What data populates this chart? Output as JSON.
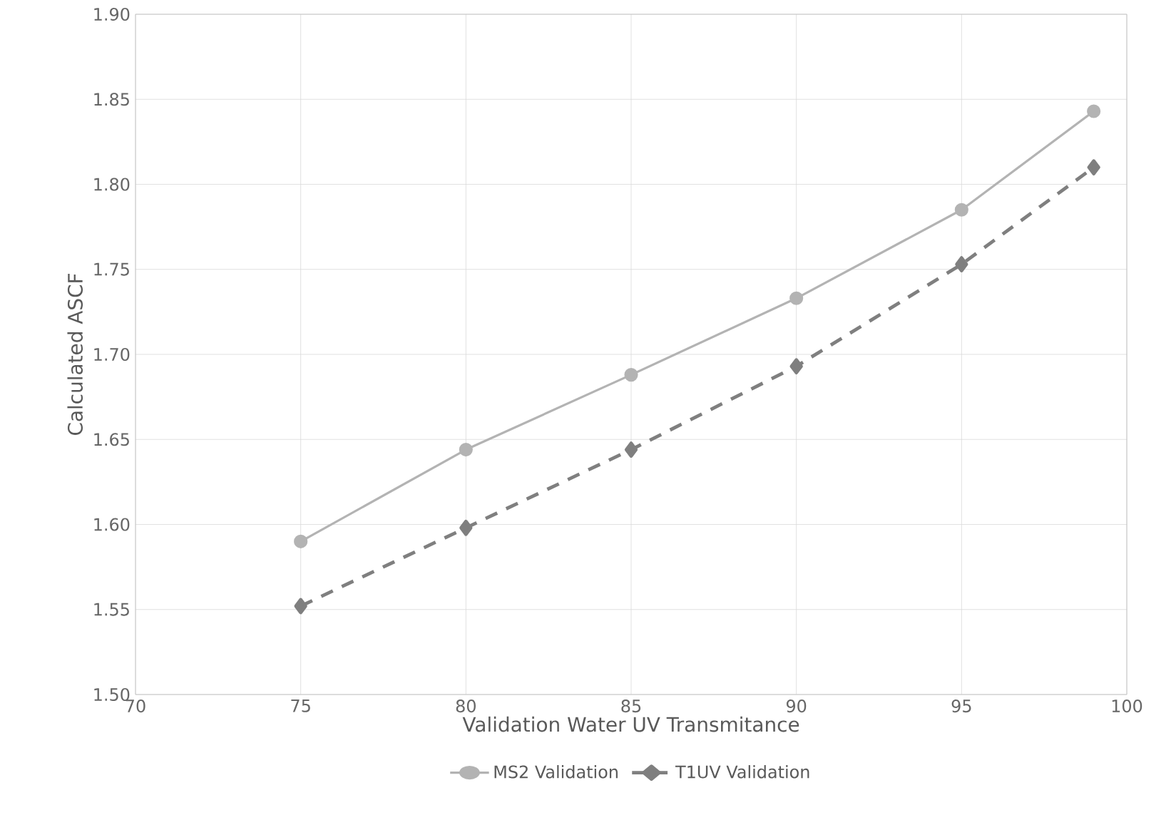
{
  "chart_data": {
    "type": "line",
    "xlabel": "Validation Water UV Transmitance",
    "ylabel": "Calculated ASCF",
    "x": [
      75,
      80,
      85,
      90,
      95,
      99
    ],
    "series": [
      {
        "name": "MS2 Validation",
        "color": "#b3b3b3",
        "values": [
          1.59,
          1.644,
          1.688,
          1.733,
          1.785,
          1.843
        ],
        "marker": "circle",
        "line_style": "solid"
      },
      {
        "name": "T1UV Validation",
        "color": "#7f7f7f",
        "values": [
          1.552,
          1.598,
          1.644,
          1.693,
          1.753,
          1.81
        ],
        "marker": "diamond",
        "line_style": "dashed"
      }
    ],
    "xlim": [
      70,
      100
    ],
    "xticks": [
      70,
      75,
      80,
      85,
      90,
      95,
      100
    ],
    "ylim": [
      1.5,
      1.9
    ],
    "yticks": [
      {
        "value": 1.5,
        "label": "1.50"
      },
      {
        "value": 1.55,
        "label": "1.55"
      },
      {
        "value": 1.6,
        "label": "1.60"
      },
      {
        "value": 1.65,
        "label": "1.65"
      },
      {
        "value": 1.7,
        "label": "1.70"
      },
      {
        "value": 1.75,
        "label": "1.75"
      },
      {
        "value": 1.8,
        "label": "1.80"
      },
      {
        "value": 1.85,
        "label": "1.85"
      },
      {
        "value": 1.9,
        "label": "1.90"
      }
    ],
    "grid": true,
    "legend": "bottom"
  }
}
